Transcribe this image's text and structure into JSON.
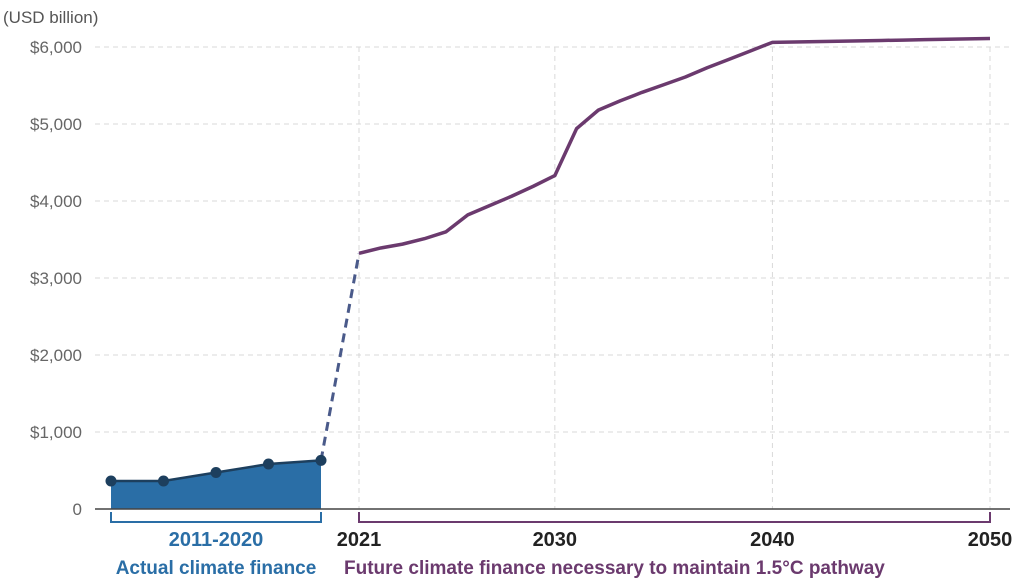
{
  "chart_data": {
    "type": "line",
    "unit_label": "(USD billion)",
    "y_ticks": [
      "0",
      "$1,000",
      "$2,000",
      "$3,000",
      "$4,000",
      "$5,000",
      "$6,000"
    ],
    "y_tick_values": [
      0,
      1000,
      2000,
      3000,
      4000,
      5000,
      6000
    ],
    "ylim": [
      0,
      6200
    ],
    "grid": true,
    "x_ticks": [
      "2021",
      "2030",
      "2040",
      "2050"
    ],
    "actual_range_label": "2011-2020",
    "series": [
      {
        "name": "Actual climate finance",
        "color": "#2a6ea6",
        "fill_color": "#2a6ea6",
        "style": "area",
        "x": [
          2011.5,
          2013.5,
          2015.5,
          2017.5,
          2019.5
        ],
        "values": [
          364,
          364,
          474,
          584,
          632
        ]
      },
      {
        "name": "Future climate finance necessary to maintain 1.5°C pathway",
        "color": "#6b3a6e",
        "style": "line",
        "x": [
          2021,
          2022,
          2023,
          2024,
          2025,
          2026,
          2027,
          2028,
          2029,
          2030,
          2031,
          2032,
          2033,
          2034,
          2035,
          2036,
          2037,
          2038,
          2039,
          2040,
          2041,
          2042,
          2043,
          2044,
          2045,
          2046,
          2047,
          2048,
          2049,
          2050
        ],
        "values": [
          3320,
          3390,
          3440,
          3510,
          3600,
          3820,
          3940,
          4060,
          4190,
          4330,
          4940,
          5180,
          5300,
          5410,
          5510,
          5610,
          5730,
          5840,
          5950,
          6060,
          6065,
          6070,
          6075,
          6080,
          6085,
          6090,
          6095,
          6100,
          6105,
          6110
        ]
      }
    ],
    "connector": {
      "from": [
        2019.5,
        632
      ],
      "to": [
        2021,
        3320
      ],
      "style": "dashed",
      "color": "#4a5a8a"
    }
  }
}
